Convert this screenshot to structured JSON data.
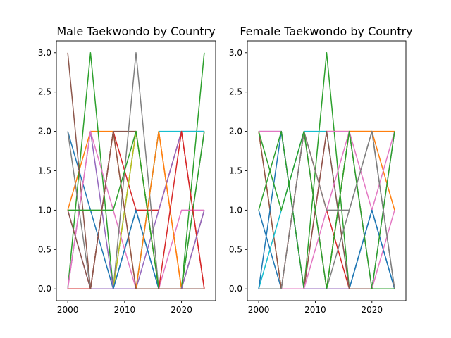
{
  "chart_data": [
    {
      "type": "line",
      "title": "Male Taekwondo by Country",
      "xlabel": "",
      "ylabel": "",
      "xlim": [
        1998,
        2026
      ],
      "ylim": [
        -0.15,
        3.15
      ],
      "x_ticks": [
        2000,
        2010,
        2020
      ],
      "x_tick_labels": [
        "2000",
        "2010",
        "2020"
      ],
      "y_ticks": [
        0,
        0.5,
        1,
        1.5,
        2,
        2.5,
        3
      ],
      "y_tick_labels": [
        "0.0",
        "0.5",
        "1.0",
        "1.5",
        "2.0",
        "2.5",
        "3.0"
      ],
      "grid": false,
      "x": [
        2000,
        2004,
        2008,
        2012,
        2016,
        2020,
        2024
      ],
      "series": [
        {
          "color": "#1f77b4",
          "values": [
            2,
            1,
            0,
            1,
            0,
            0,
            0
          ]
        },
        {
          "color": "#ff7f0e",
          "values": [
            1,
            2,
            2,
            0,
            2,
            0,
            0
          ]
        },
        {
          "color": "#2ca02c",
          "values": [
            0,
            3,
            0,
            2,
            0,
            0,
            3
          ]
        },
        {
          "color": "#d62728",
          "values": [
            0,
            0,
            2,
            1,
            1,
            2,
            0
          ]
        },
        {
          "color": "#9467bd",
          "values": [
            0,
            2,
            0,
            0,
            1,
            2,
            2
          ]
        },
        {
          "color": "#8c564b",
          "values": [
            3,
            0,
            2,
            2,
            0,
            0,
            1
          ]
        },
        {
          "color": "#e377c2",
          "values": [
            0,
            2,
            1,
            0,
            0,
            1,
            1
          ]
        },
        {
          "color": "#7f7f7f",
          "values": [
            2,
            0,
            0,
            3,
            0,
            0,
            2
          ]
        },
        {
          "color": "#bcbd22",
          "values": [
            0,
            0,
            0,
            2,
            0,
            0,
            0
          ]
        },
        {
          "color": "#17becf",
          "values": [
            0,
            0,
            0,
            0,
            2,
            2,
            2
          ]
        },
        {
          "color": "#1f77b4",
          "values": [
            0,
            0,
            0,
            1,
            0,
            0,
            0
          ]
        },
        {
          "color": "#ff7f0e",
          "values": [
            0,
            0,
            0,
            0,
            2,
            0,
            0
          ]
        },
        {
          "color": "#2ca02c",
          "values": [
            1,
            1,
            1,
            2,
            0,
            0,
            2
          ]
        },
        {
          "color": "#d62728",
          "values": [
            0,
            0,
            0,
            0,
            0,
            2,
            0
          ]
        },
        {
          "color": "#9467bd",
          "values": [
            1,
            0,
            0,
            0,
            0,
            0,
            1
          ]
        },
        {
          "color": "#8c564b",
          "values": [
            1,
            0,
            2,
            0,
            0,
            0,
            0
          ]
        }
      ]
    },
    {
      "type": "line",
      "title": "Female Taekwondo by Country",
      "xlabel": "",
      "ylabel": "",
      "xlim": [
        1998,
        2026
      ],
      "ylim": [
        -0.15,
        3.15
      ],
      "x_ticks": [
        2000,
        2010,
        2020
      ],
      "x_tick_labels": [
        "2000",
        "2010",
        "2020"
      ],
      "y_ticks": [
        0,
        0.5,
        1,
        1.5,
        2,
        2.5,
        3
      ],
      "y_tick_labels": [
        "0.0",
        "0.5",
        "1.0",
        "1.5",
        "2.0",
        "2.5",
        "3.0"
      ],
      "grid": false,
      "x": [
        2000,
        2004,
        2008,
        2012,
        2016,
        2020,
        2024
      ],
      "series": [
        {
          "color": "#1f77b4",
          "values": [
            1,
            0,
            0,
            0,
            0,
            1,
            0
          ]
        },
        {
          "color": "#ff7f0e",
          "values": [
            2,
            0,
            0,
            2,
            2,
            2,
            1
          ]
        },
        {
          "color": "#2ca02c",
          "values": [
            0,
            0,
            0,
            3,
            0,
            0,
            0
          ]
        },
        {
          "color": "#d62728",
          "values": [
            0,
            0,
            2,
            1,
            0,
            0,
            0
          ]
        },
        {
          "color": "#9467bd",
          "values": [
            2,
            2,
            0,
            0,
            0,
            0,
            2
          ]
        },
        {
          "color": "#8c564b",
          "values": [
            2,
            0,
            2,
            0,
            0,
            0,
            0
          ]
        },
        {
          "color": "#e377c2",
          "values": [
            2,
            2,
            0,
            2,
            2,
            1,
            2
          ]
        },
        {
          "color": "#7f7f7f",
          "values": [
            0,
            0,
            0,
            0,
            1,
            2,
            0
          ]
        },
        {
          "color": "#bcbd22",
          "values": [
            0,
            0,
            0,
            0,
            0,
            0,
            0
          ]
        },
        {
          "color": "#17becf",
          "values": [
            0,
            1,
            2,
            2,
            0,
            0,
            0
          ]
        },
        {
          "color": "#1f77b4",
          "values": [
            0,
            2,
            0,
            0,
            0,
            1,
            0
          ]
        },
        {
          "color": "#ff7f0e",
          "values": [
            0,
            0,
            0,
            0,
            2,
            2,
            2
          ]
        },
        {
          "color": "#2ca02c",
          "values": [
            1,
            2,
            0,
            0,
            2,
            0,
            2
          ]
        },
        {
          "color": "#d62728",
          "values": [
            0,
            0,
            0,
            0,
            0,
            0,
            0
          ]
        },
        {
          "color": "#9467bd",
          "values": [
            0,
            0,
            0,
            0,
            0,
            0,
            0
          ]
        },
        {
          "color": "#8c564b",
          "values": [
            0,
            0,
            0,
            2,
            0,
            0,
            0
          ]
        },
        {
          "color": "#e377c2",
          "values": [
            0,
            0,
            0,
            1,
            2,
            0,
            1
          ]
        },
        {
          "color": "#7f7f7f",
          "values": [
            0,
            0,
            2,
            1,
            1,
            2,
            0
          ]
        },
        {
          "color": "#2ca02c",
          "values": [
            2,
            1,
            2,
            0,
            2,
            0,
            0
          ]
        }
      ]
    }
  ]
}
